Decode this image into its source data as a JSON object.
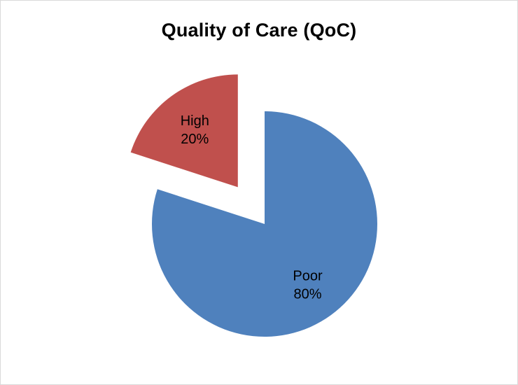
{
  "chart_data": {
    "type": "pie",
    "title": "Quality of Care (QoC)",
    "slices": [
      {
        "label": "Poor",
        "value": 80,
        "value_label": "80%",
        "color": "#4F81BD",
        "exploded": false
      },
      {
        "label": "High",
        "value": 20,
        "value_label": "20%",
        "color": "#C0504D",
        "exploded": true
      }
    ],
    "legend": "none"
  }
}
